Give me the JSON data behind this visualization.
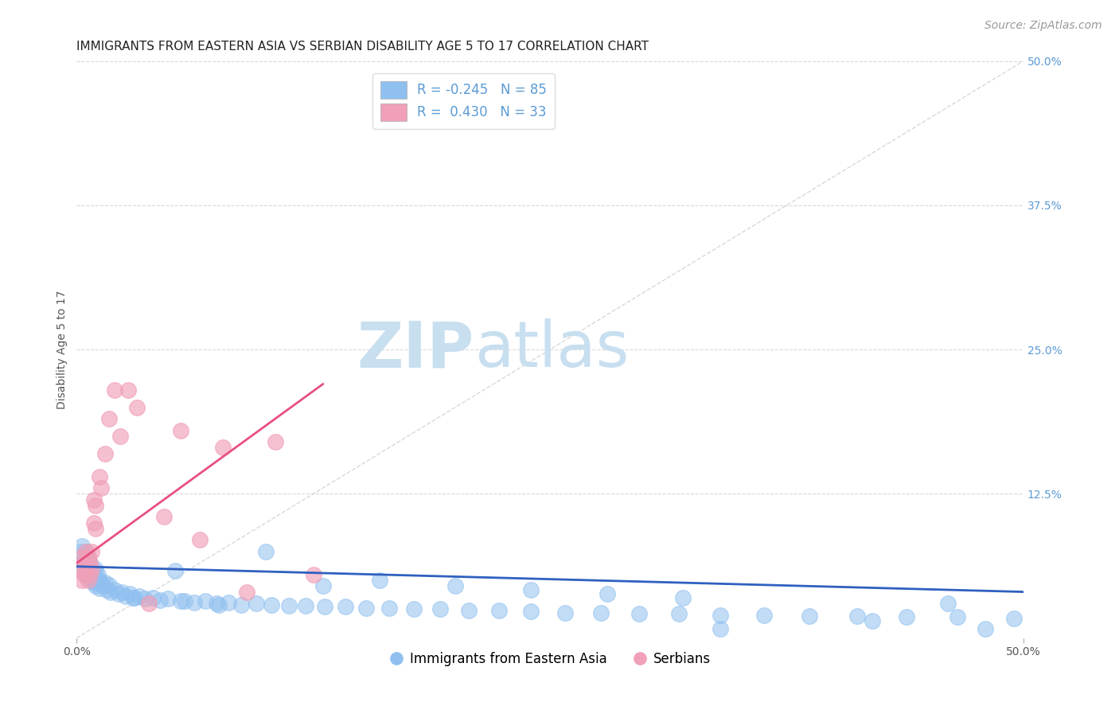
{
  "title": "IMMIGRANTS FROM EASTERN ASIA VS SERBIAN DISABILITY AGE 5 TO 17 CORRELATION CHART",
  "source": "Source: ZipAtlas.com",
  "ylabel": "Disability Age 5 to 17",
  "xlim": [
    0.0,
    0.5
  ],
  "ylim": [
    0.0,
    0.5
  ],
  "blue_color": "#90c0f0",
  "pink_color": "#f0a0b8",
  "blue_line_color": "#3060c0",
  "pink_line_color": "#e85080",
  "ref_line_color": "#c8c8c8",
  "grid_color": "#d8d8d8",
  "background_color": "#ffffff",
  "watermark_zip": "ZIP",
  "watermark_atlas": "atlas",
  "watermark_color_zip": "#c8dff0",
  "watermark_color_atlas": "#c8dff0",
  "title_fontsize": 11,
  "tick_fontsize": 10,
  "source_fontsize": 10,
  "blue_scatter_x": [
    0.002,
    0.003,
    0.003,
    0.004,
    0.004,
    0.005,
    0.005,
    0.005,
    0.006,
    0.006,
    0.007,
    0.007,
    0.008,
    0.008,
    0.009,
    0.009,
    0.01,
    0.01,
    0.01,
    0.011,
    0.011,
    0.012,
    0.012,
    0.013,
    0.014,
    0.015,
    0.016,
    0.017,
    0.018,
    0.02,
    0.022,
    0.024,
    0.026,
    0.028,
    0.03,
    0.033,
    0.036,
    0.04,
    0.044,
    0.048,
    0.052,
    0.057,
    0.062,
    0.068,
    0.074,
    0.08,
    0.087,
    0.095,
    0.103,
    0.112,
    0.121,
    0.131,
    0.142,
    0.153,
    0.165,
    0.178,
    0.192,
    0.207,
    0.223,
    0.24,
    0.258,
    0.277,
    0.297,
    0.318,
    0.34,
    0.363,
    0.387,
    0.412,
    0.438,
    0.465,
    0.34,
    0.42,
    0.46,
    0.48,
    0.495,
    0.03,
    0.055,
    0.075,
    0.1,
    0.13,
    0.16,
    0.2,
    0.24,
    0.28,
    0.32
  ],
  "blue_scatter_y": [
    0.075,
    0.08,
    0.065,
    0.07,
    0.06,
    0.075,
    0.065,
    0.055,
    0.07,
    0.06,
    0.065,
    0.055,
    0.06,
    0.05,
    0.058,
    0.048,
    0.06,
    0.052,
    0.045,
    0.055,
    0.048,
    0.05,
    0.043,
    0.048,
    0.045,
    0.048,
    0.042,
    0.046,
    0.04,
    0.042,
    0.038,
    0.04,
    0.036,
    0.038,
    0.035,
    0.036,
    0.034,
    0.035,
    0.033,
    0.034,
    0.058,
    0.032,
    0.031,
    0.032,
    0.03,
    0.031,
    0.029,
    0.03,
    0.029,
    0.028,
    0.028,
    0.027,
    0.027,
    0.026,
    0.026,
    0.025,
    0.025,
    0.024,
    0.024,
    0.023,
    0.022,
    0.022,
    0.021,
    0.021,
    0.02,
    0.02,
    0.019,
    0.019,
    0.018,
    0.018,
    0.008,
    0.015,
    0.03,
    0.008,
    0.017,
    0.035,
    0.032,
    0.029,
    0.075,
    0.045,
    0.05,
    0.045,
    0.042,
    0.038,
    0.035
  ],
  "pink_scatter_x": [
    0.002,
    0.003,
    0.003,
    0.004,
    0.004,
    0.005,
    0.005,
    0.006,
    0.006,
    0.007,
    0.007,
    0.008,
    0.008,
    0.009,
    0.009,
    0.01,
    0.01,
    0.012,
    0.013,
    0.015,
    0.017,
    0.02,
    0.023,
    0.027,
    0.032,
    0.038,
    0.046,
    0.055,
    0.065,
    0.077,
    0.09,
    0.105,
    0.125
  ],
  "pink_scatter_y": [
    0.06,
    0.07,
    0.05,
    0.065,
    0.055,
    0.075,
    0.06,
    0.07,
    0.05,
    0.065,
    0.055,
    0.075,
    0.06,
    0.12,
    0.1,
    0.115,
    0.095,
    0.14,
    0.13,
    0.16,
    0.19,
    0.215,
    0.175,
    0.215,
    0.2,
    0.03,
    0.105,
    0.18,
    0.085,
    0.165,
    0.04,
    0.17,
    0.055
  ],
  "blue_line_x": [
    0.0,
    0.5
  ],
  "blue_line_y": [
    0.062,
    0.04
  ],
  "pink_line_x": [
    0.0,
    0.13
  ],
  "pink_line_y": [
    0.065,
    0.22
  ],
  "ref_line_x": [
    0.0,
    0.5
  ],
  "ref_line_y": [
    0.0,
    0.5
  ],
  "legend_blue_label_r": "R = -0.245",
  "legend_blue_label_n": "N = 85",
  "legend_pink_label_r": "R =  0.430",
  "legend_pink_label_n": "N = 33",
  "bottom_legend_blue": "Immigrants from Eastern Asia",
  "bottom_legend_pink": "Serbians"
}
